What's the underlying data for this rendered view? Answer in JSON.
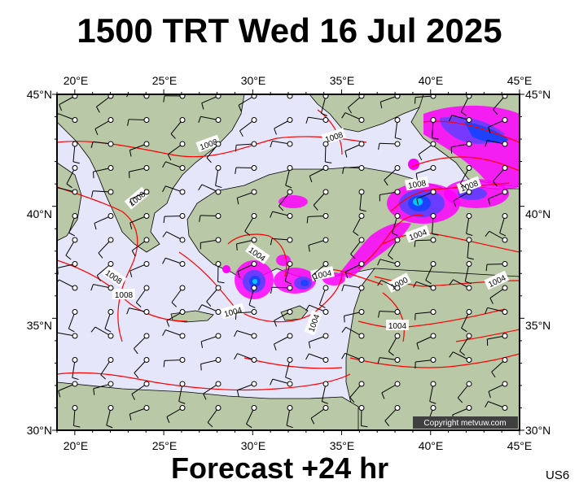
{
  "title": "1500 TRT Wed 16 Jul 2025",
  "footer": {
    "forecast": "Forecast +24 hr",
    "code": "US6"
  },
  "axes": {
    "lon_ticks": [
      "20°E",
      "25°E",
      "30°E",
      "35°E",
      "40°E",
      "45°E"
    ],
    "lat_ticks": [
      "45°N",
      "40°N",
      "35°N",
      "30°N"
    ]
  },
  "copyright": "Copyright metvuw.com",
  "isobar_labels": [
    "1008",
    "1008",
    "1008",
    "1008",
    "1008",
    "1004",
    "1004",
    "1004",
    "1004",
    "1004",
    "1004",
    "1000",
    "1004",
    "1008",
    "1008",
    "1004"
  ],
  "colors": {
    "sea": "#e6e6fa",
    "land": "#b9c8a6",
    "isobar": "#ff0000",
    "rain_light": "#ff00ff",
    "rain_mid": "#6a3cff",
    "rain_heavy": "#1e40ff",
    "rain_core": "#00c8ff"
  },
  "map_extent": {
    "lon_min": 19,
    "lon_max": 45,
    "lat_min": 30,
    "lat_max": 45
  }
}
